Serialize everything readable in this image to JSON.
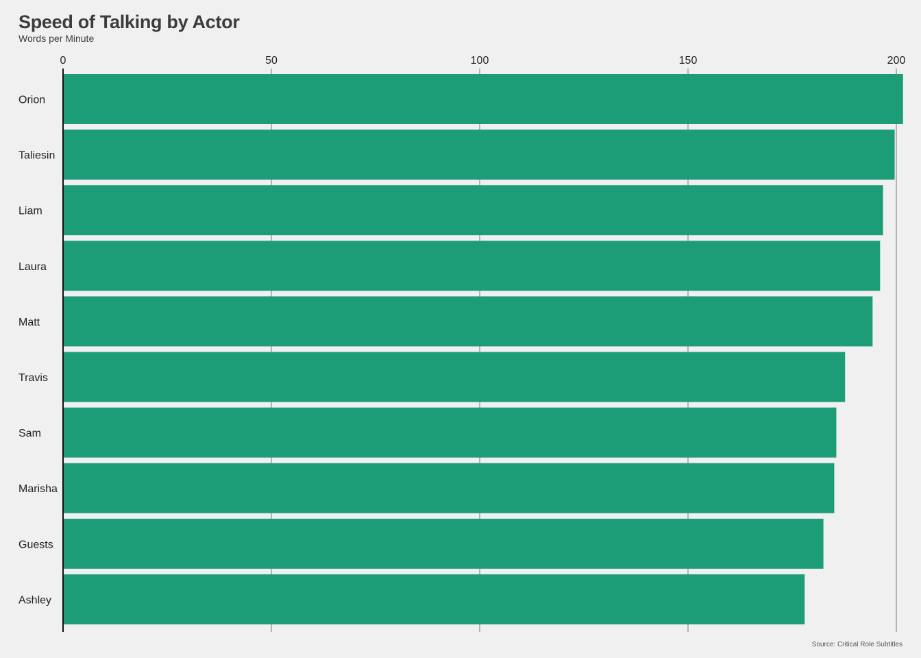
{
  "chart_data": {
    "type": "bar",
    "orientation": "horizontal",
    "title": "Speed of Talking by Actor",
    "subtitle": "Words per Minute",
    "source": "Source: Critical Role Subtitles",
    "categories": [
      "Orion",
      "Taliesin",
      "Liam",
      "Laura",
      "Matt",
      "Travis",
      "Sam",
      "Marisha",
      "Guests",
      "Ashley"
    ],
    "values": [
      201.6,
      199.6,
      196.8,
      196.1,
      194.3,
      187.7,
      185.6,
      185.1,
      182.5,
      178.0
    ],
    "xticks": [
      0,
      50,
      100,
      150,
      200
    ],
    "xlim": [
      0,
      201.6
    ],
    "x_axis_position": "top",
    "grid": "vertical",
    "bar_color": "#1c9d78",
    "background_color": "#f0f0f0",
    "gridline_color": "#a0a0a0"
  }
}
